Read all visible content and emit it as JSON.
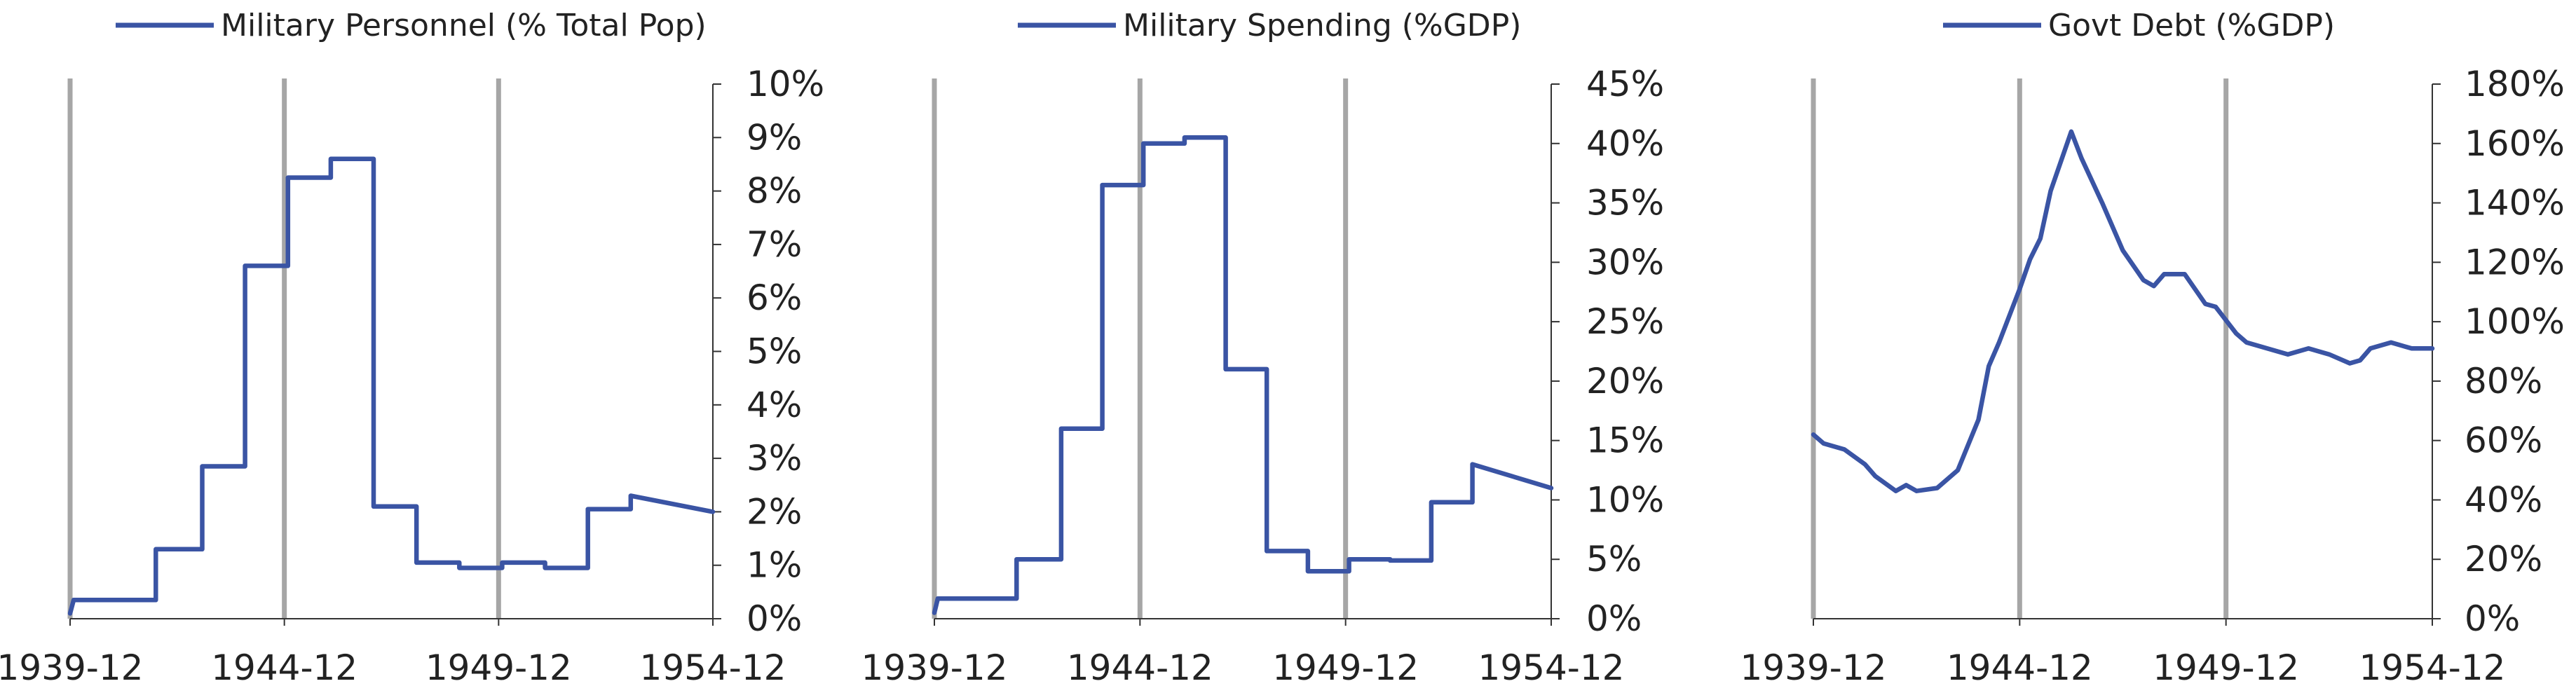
{
  "colors": {
    "series": "#3a54a4",
    "divider": "#a6a6a6",
    "axis": "#333333"
  },
  "chart_data": [
    {
      "type": "line",
      "legend_position": "top",
      "grid": false,
      "series": [
        {
          "name": "Military Personnel (% Total Pop)",
          "x": [
            "1939-12",
            "1940-01",
            "1940-01",
            "1941-12",
            "1941-12",
            "1943-01",
            "1943-01",
            "1944-01",
            "1944-01",
            "1945-01",
            "1945-01",
            "1946-01",
            "1946-01",
            "1947-01",
            "1947-01",
            "1948-01",
            "1948-01",
            "1949-01",
            "1949-01",
            "1950-01",
            "1950-01",
            "1951-01",
            "1951-01",
            "1952-01",
            "1952-01",
            "1953-01",
            "1953-01",
            "1954-12"
          ],
          "values": [
            0.1,
            0.35,
            0.35,
            0.35,
            1.3,
            1.3,
            2.85,
            2.85,
            6.6,
            6.6,
            8.25,
            8.25,
            8.6,
            8.6,
            2.1,
            2.1,
            1.05,
            1.05,
            0.95,
            0.95,
            1.05,
            1.05,
            0.95,
            0.95,
            2.05,
            2.05,
            2.3,
            2.0
          ]
        }
      ],
      "y_ticks": [
        "0%",
        "1%",
        "2%",
        "3%",
        "4%",
        "5%",
        "6%",
        "7%",
        "8%",
        "9%",
        "10%"
      ],
      "ylim": [
        0,
        10
      ],
      "x_ticks": [
        "1939-12",
        "1944-12",
        "1949-12",
        "1954-12"
      ]
    },
    {
      "type": "line",
      "legend_position": "top",
      "grid": false,
      "series": [
        {
          "name": "Military Spending (%GDP)",
          "x": [
            "1939-12",
            "1940-01",
            "1940-01",
            "1941-12",
            "1941-12",
            "1943-01",
            "1943-01",
            "1944-01",
            "1944-01",
            "1945-01",
            "1945-01",
            "1946-01",
            "1946-01",
            "1947-01",
            "1947-01",
            "1948-01",
            "1948-01",
            "1949-01",
            "1949-01",
            "1950-01",
            "1950-01",
            "1951-01",
            "1951-01",
            "1952-01",
            "1952-01",
            "1953-01",
            "1953-01",
            "1954-12"
          ],
          "values": [
            0.5,
            1.7,
            1.7,
            1.7,
            5.0,
            5.0,
            16.0,
            16.0,
            36.5,
            36.5,
            40.0,
            40.0,
            40.5,
            40.5,
            21.0,
            21.0,
            5.7,
            5.7,
            4.0,
            4.0,
            5.0,
            5.0,
            4.9,
            4.9,
            9.8,
            9.8,
            13.0,
            11.0
          ]
        }
      ],
      "y_ticks": [
        "0%",
        "5%",
        "10%",
        "15%",
        "20%",
        "25%",
        "30%",
        "35%",
        "40%",
        "45%"
      ],
      "ylim": [
        0,
        45
      ],
      "x_ticks": [
        "1939-12",
        "1944-12",
        "1949-12",
        "1954-12"
      ]
    },
    {
      "type": "line",
      "legend_position": "top",
      "grid": false,
      "series": [
        {
          "name": "Govt Debt (%GDP)",
          "x": [
            "1939-12",
            "1940-03",
            "1940-09",
            "1941-03",
            "1941-06",
            "1941-12",
            "1942-03",
            "1942-06",
            "1942-12",
            "1943-06",
            "1943-12",
            "1944-03",
            "1944-06",
            "1944-12",
            "1945-03",
            "1945-06",
            "1945-09",
            "1946-03",
            "1946-06",
            "1946-12",
            "1947-06",
            "1947-12",
            "1948-03",
            "1948-06",
            "1948-12",
            "1949-06",
            "1949-09",
            "1950-03",
            "1950-06",
            "1950-12",
            "1951-06",
            "1951-12",
            "1952-06",
            "1952-12",
            "1953-03",
            "1953-06",
            "1953-12",
            "1954-06",
            "1954-12"
          ],
          "values": [
            62,
            59,
            57,
            52,
            48,
            43,
            45,
            43,
            44,
            50,
            67,
            85,
            93,
            111,
            121,
            128,
            144,
            164,
            155,
            140,
            124,
            114,
            112,
            116,
            116,
            106,
            105,
            96,
            93,
            91,
            89,
            91,
            89,
            86,
            87,
            91,
            93,
            91,
            91
          ]
        }
      ],
      "y_ticks": [
        "0%",
        "20%",
        "40%",
        "60%",
        "80%",
        "100%",
        "120%",
        "140%",
        "160%",
        "180%"
      ],
      "ylim": [
        0,
        180
      ],
      "x_ticks": [
        "1939-12",
        "1944-12",
        "1949-12",
        "1954-12"
      ]
    }
  ]
}
